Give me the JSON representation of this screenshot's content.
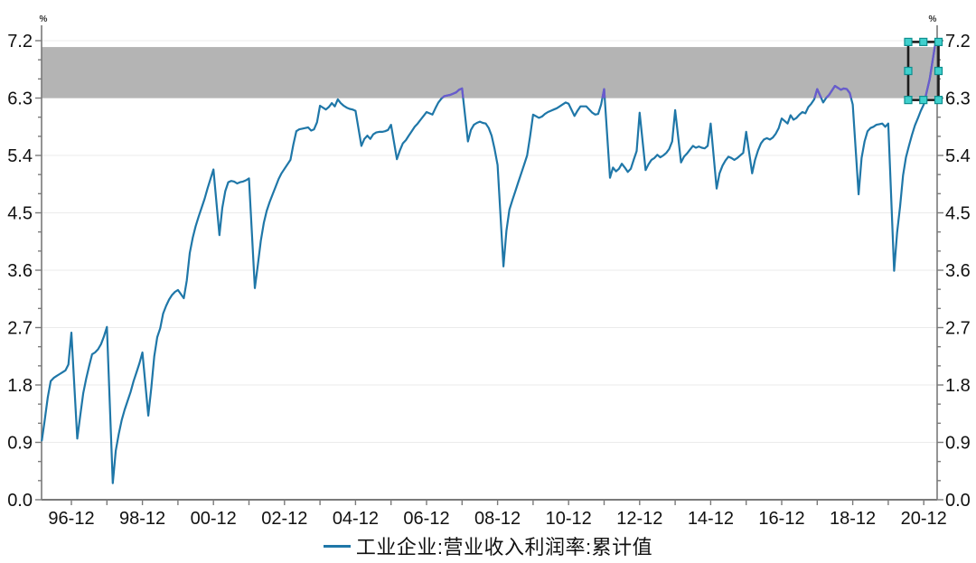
{
  "legend": {
    "label": "工业企业:营业收入利润率:累计值"
  },
  "chart_data": {
    "type": "line",
    "title": "",
    "unit_label_left": "%",
    "unit_label_right": "%",
    "series": [
      {
        "name": "工业企业:营业收入利润率:累计值",
        "color": "#1f77a8",
        "highlight_color": "#6a5acd"
      }
    ],
    "y_axis": {
      "range": [
        0,
        7.2
      ],
      "tick_step_major": 0.9,
      "tick_step_minor": 0.3,
      "tick_labels": [
        "0.0",
        "0.9",
        "1.8",
        "2.7",
        "3.6",
        "4.5",
        "5.4",
        "6.3",
        "7.2"
      ],
      "sides": [
        "left",
        "right"
      ],
      "grid": true
    },
    "x_axis": {
      "tick_labels": [
        "96-12",
        "98-12",
        "00-12",
        "02-12",
        "04-12",
        "06-12",
        "08-12",
        "10-12",
        "12-12",
        "14-12",
        "16-12",
        "18-12",
        "20-12"
      ],
      "minor_tick_every": "1 year",
      "label_every": "2 years"
    },
    "band": {
      "from": 6.3,
      "to": 7.1,
      "color": "#b4b4b4"
    },
    "highlight_above": 6.3,
    "selection_box": {
      "value_from": 6.27,
      "value_to": 7.18,
      "date_from": "2020-07",
      "date_to": "2021-06",
      "border_color": "#1c1c1c",
      "handle_fill": "#3fd0cd",
      "handle_stroke": "#0e8f8f"
    },
    "months_per_year": [
      2,
      3,
      4,
      5,
      6,
      7,
      8,
      9,
      10,
      11,
      12
    ],
    "monthly_values": {
      "1996": [
        0.93,
        1.25,
        1.6,
        1.86,
        1.91,
        1.94,
        1.97,
        2.0,
        2.03,
        2.12,
        2.62
      ],
      "1997": [
        0.96,
        1.32,
        1.67,
        1.9,
        2.1,
        2.28,
        2.31,
        2.36,
        2.44,
        2.56,
        2.71
      ],
      "1998": [
        0.26,
        0.77,
        1.03,
        1.25,
        1.41,
        1.55,
        1.69,
        1.86,
        2.0,
        2.14,
        2.31
      ],
      "1999": [
        1.32,
        1.75,
        2.25,
        2.55,
        2.69,
        2.92,
        3.04,
        3.14,
        3.21,
        3.26,
        3.29
      ],
      "2000": [
        3.16,
        3.44,
        3.87,
        4.11,
        4.29,
        4.44,
        4.58,
        4.72,
        4.88,
        5.03,
        5.18
      ],
      "2001": [
        4.15,
        4.58,
        4.84,
        4.98,
        5.0,
        4.99,
        4.96,
        4.98,
        4.99,
        5.01,
        5.04
      ],
      "2002": [
        3.32,
        3.68,
        4.06,
        4.34,
        4.53,
        4.67,
        4.79,
        4.91,
        5.03,
        5.12,
        5.19
      ],
      "2003": [
        5.33,
        5.57,
        5.78,
        5.81,
        5.82,
        5.83,
        5.84,
        5.79,
        5.81,
        5.92,
        6.18
      ],
      "2004": [
        6.12,
        6.16,
        6.22,
        6.17,
        6.28,
        6.22,
        6.18,
        6.15,
        6.13,
        6.12,
        6.1
      ],
      "2005": [
        5.55,
        5.66,
        5.71,
        5.66,
        5.73,
        5.76,
        5.77,
        5.77,
        5.78,
        5.8,
        5.88
      ],
      "2006": [
        5.34,
        5.48,
        5.59,
        5.64,
        5.71,
        5.78,
        5.85,
        5.9,
        5.96,
        6.02,
        6.08
      ],
      "2007": [
        6.04,
        6.14,
        6.23,
        6.29,
        6.33,
        6.34,
        6.35,
        6.37,
        6.39,
        6.43,
        6.45
      ],
      "2008": [
        5.62,
        5.8,
        5.88,
        5.91,
        5.93,
        5.91,
        5.9,
        5.83,
        5.71,
        5.5,
        5.25
      ],
      "2009": [
        3.66,
        4.22,
        4.55,
        4.7,
        4.84,
        4.98,
        5.12,
        5.26,
        5.4,
        5.7,
        6.04
      ],
      "2010": [
        5.99,
        6.01,
        6.05,
        6.08,
        6.1,
        6.12,
        6.14,
        6.17,
        6.2,
        6.23,
        6.21
      ],
      "2011": [
        6.02,
        6.1,
        6.17,
        6.17,
        6.17,
        6.12,
        6.07,
        6.04,
        6.05,
        6.2,
        6.44
      ],
      "2012": [
        5.05,
        5.21,
        5.15,
        5.19,
        5.27,
        5.21,
        5.14,
        5.19,
        5.33,
        5.47,
        6.07
      ],
      "2013": [
        5.17,
        5.26,
        5.33,
        5.36,
        5.41,
        5.37,
        5.4,
        5.44,
        5.5,
        5.62,
        6.11
      ],
      "2014": [
        5.29,
        5.38,
        5.43,
        5.49,
        5.55,
        5.52,
        5.54,
        5.52,
        5.51,
        5.55,
        5.9
      ],
      "2015": [
        4.88,
        5.12,
        5.24,
        5.32,
        5.38,
        5.36,
        5.33,
        5.36,
        5.4,
        5.44,
        5.77
      ],
      "2016": [
        5.12,
        5.33,
        5.48,
        5.59,
        5.65,
        5.67,
        5.65,
        5.68,
        5.74,
        5.83,
        5.98
      ],
      "2017": [
        5.9,
        6.03,
        5.96,
        5.99,
        6.04,
        6.08,
        6.06,
        6.16,
        6.21,
        6.28,
        6.44
      ],
      "2018": [
        6.23,
        6.3,
        6.35,
        6.42,
        6.49,
        6.46,
        6.43,
        6.45,
        6.44,
        6.38,
        6.2
      ],
      "2019": [
        4.79,
        5.36,
        5.62,
        5.78,
        5.83,
        5.85,
        5.88,
        5.89,
        5.9,
        5.85,
        5.9
      ],
      "2020": [
        3.59,
        4.19,
        4.6,
        5.09,
        5.37,
        5.55,
        5.72,
        5.87,
        5.98,
        6.1,
        6.2
      ],
      "2021": [
        6.6,
        6.89,
        7.18
      ]
    },
    "colors": {
      "grid": "#ebebeb",
      "axis": "#7a7a7a",
      "tick_label": "#111111",
      "unit_label": "#333333"
    }
  }
}
